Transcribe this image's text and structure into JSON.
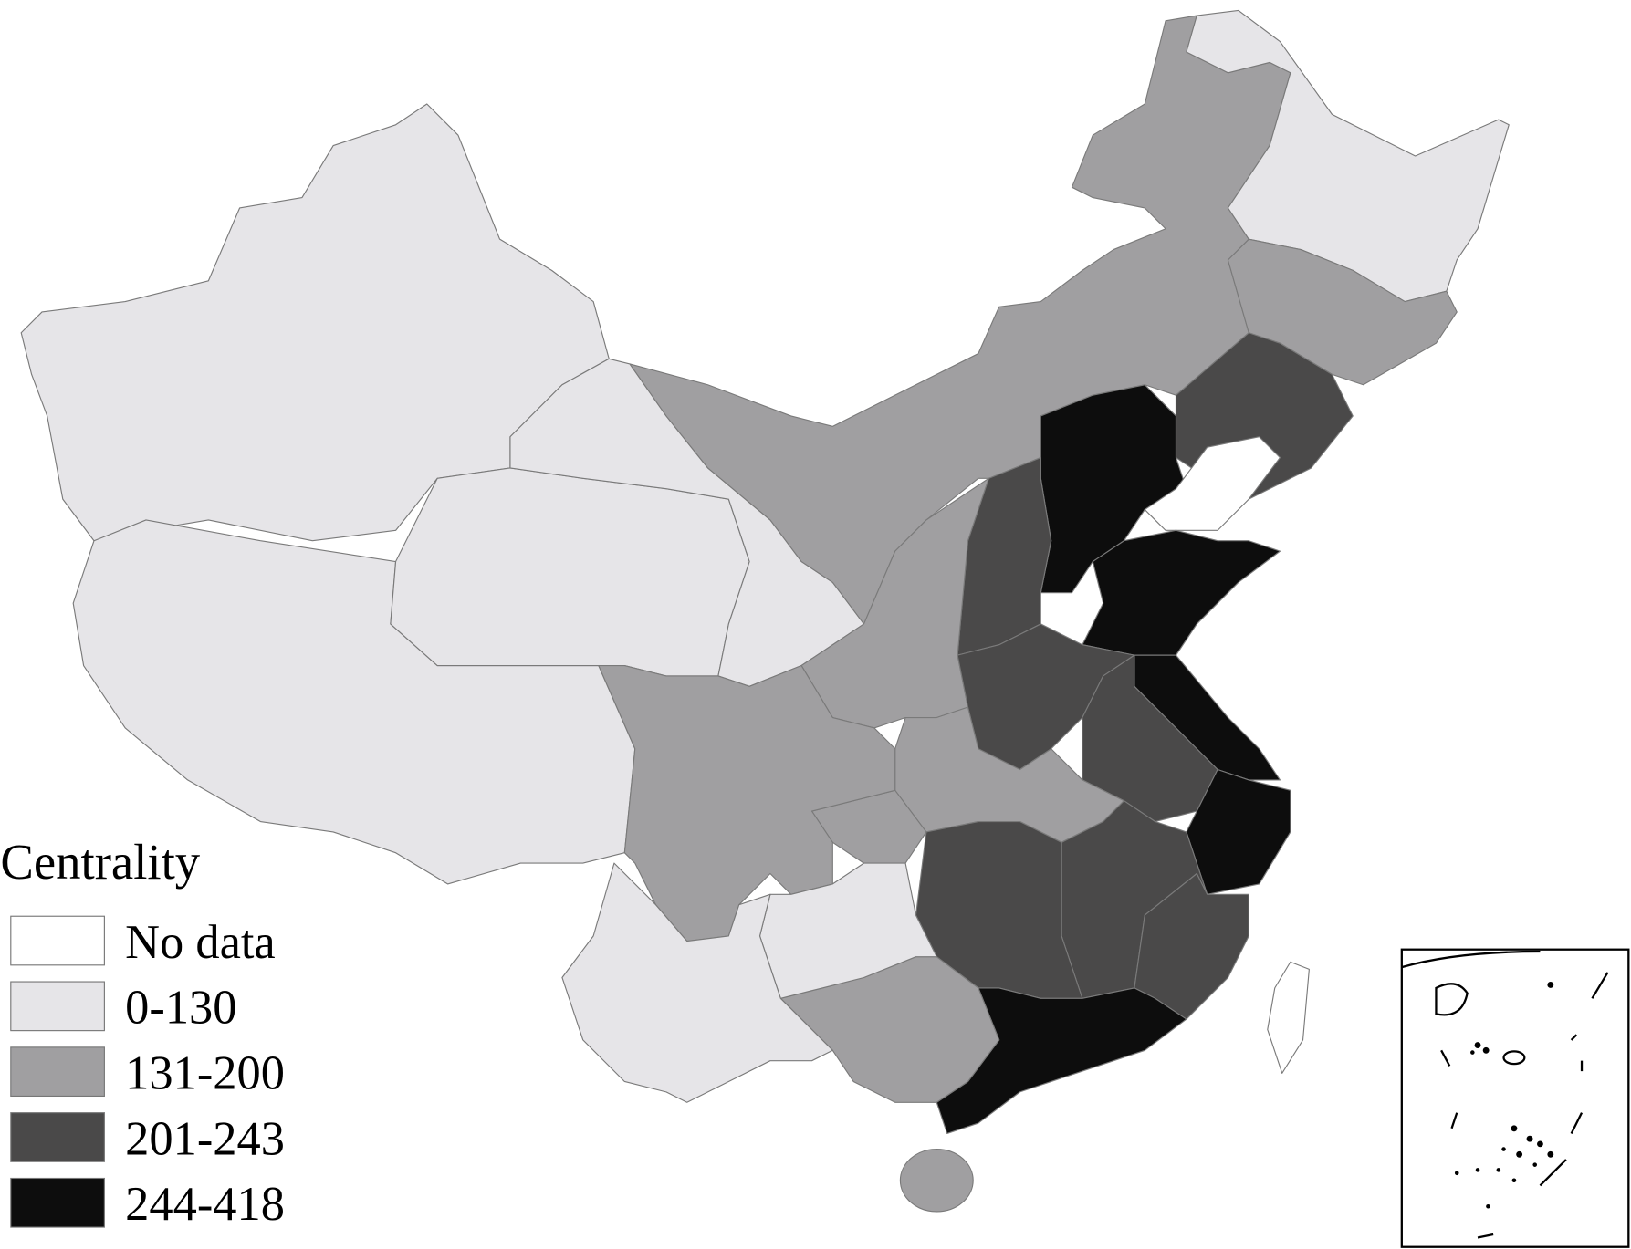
{
  "legend": {
    "title": "Centrality",
    "items": [
      {
        "label": "No data",
        "color": "#ffffff"
      },
      {
        "label": "0-130",
        "color": "#e6e5e8"
      },
      {
        "label": "131-200",
        "color": "#a09fa1"
      },
      {
        "label": "201-243",
        "color": "#4a4949"
      },
      {
        "label": "244-418",
        "color": "#0d0d0d"
      }
    ]
  }
}
